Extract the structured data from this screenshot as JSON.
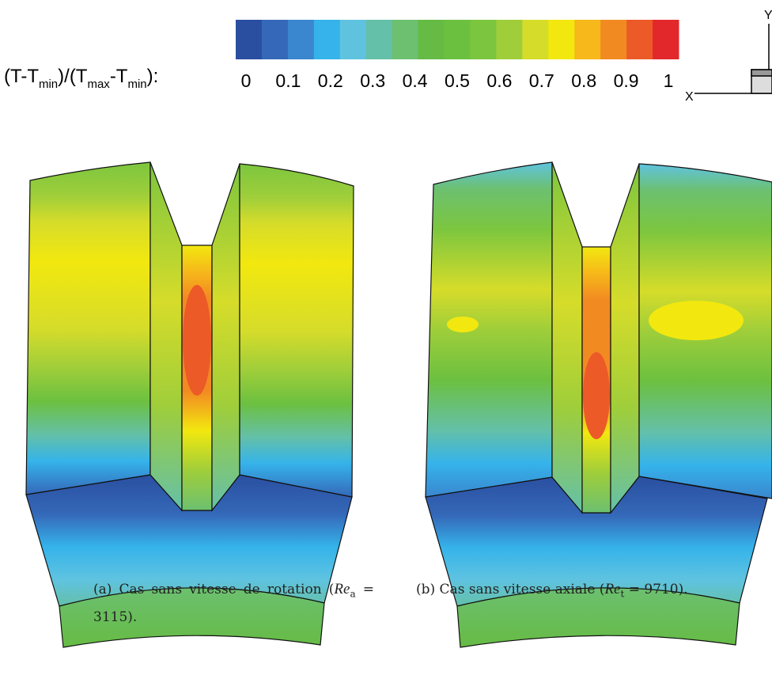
{
  "colorbar": {
    "label_parts": [
      "(T-T",
      "min",
      ")/(T",
      "max",
      "-T",
      "min",
      "):"
    ],
    "ticks": [
      0,
      0.1,
      0.2,
      0.3,
      0.4,
      0.5,
      0.6,
      0.7,
      0.8,
      0.9,
      1
    ],
    "colors": [
      "#2a4fa0",
      "#3568b8",
      "#3a86cf",
      "#35b3ea",
      "#5fc3e0",
      "#64c0a8",
      "#6cc070",
      "#66bb44",
      "#6cc040",
      "#7cc63f",
      "#9fce3a",
      "#d6dc2a",
      "#f2e80f",
      "#f6b81a",
      "#f28a22",
      "#ec5a28",
      "#e3282b"
    ]
  },
  "axes_triad": {
    "y": "Y",
    "x": "X"
  },
  "captions": [
    {
      "parts": [
        "(a) Cas sans vitesse de rotation (",
        "Re",
        "a",
        " = 3115)."
      ]
    },
    {
      "parts": [
        "(b) Cas sans vitesse axiale (",
        "Re",
        "t",
        " = 9710)."
      ]
    }
  ]
}
